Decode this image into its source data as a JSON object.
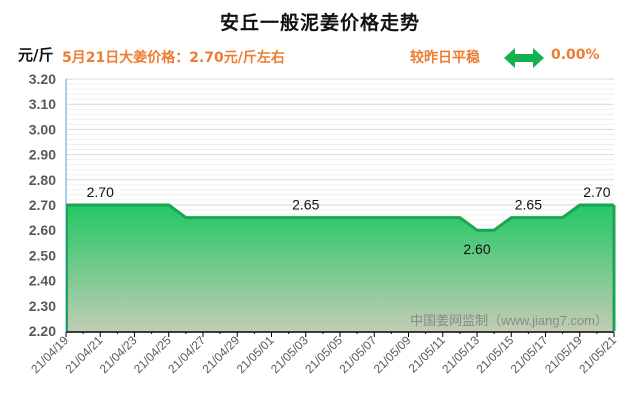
{
  "header": {
    "title": "安丘一般泥姜价格走势",
    "unit": "元/斤",
    "price_note": "5月21日大姜价格：2.70元/斤左右",
    "change_label": "较昨日平稳",
    "change_icon": "double-arrow-icon",
    "change_value": "0.00%"
  },
  "watermark": "中国姜网监制（www.jiang7.com）",
  "colors": {
    "line": "#1aa655",
    "fill_top": "#22c864",
    "fill_bottom": "#c2ccb4",
    "accent_text": "#ed7d31",
    "axis_line": "#5b9bd5"
  },
  "chart_data": {
    "type": "area",
    "title": "安丘一般泥姜价格走势",
    "xlabel": "",
    "ylabel": "元/斤",
    "ylim": [
      2.2,
      3.2
    ],
    "yticks": [
      "3.20",
      "3.10",
      "3.00",
      "2.90",
      "2.80",
      "2.70",
      "2.60",
      "2.50",
      "2.40",
      "2.30",
      "2.20"
    ],
    "x": [
      "21/04/19",
      "21/04/20",
      "21/04/21",
      "21/04/22",
      "21/04/23",
      "21/04/24",
      "21/04/25",
      "21/04/26",
      "21/04/27",
      "21/04/28",
      "21/04/29",
      "21/04/30",
      "21/05/01",
      "21/05/02",
      "21/05/03",
      "21/05/04",
      "21/05/05",
      "21/05/06",
      "21/05/07",
      "21/05/08",
      "21/05/09",
      "21/05/10",
      "21/05/11",
      "21/05/12",
      "21/05/13",
      "21/05/14",
      "21/05/15",
      "21/05/16",
      "21/05/17",
      "21/05/18",
      "21/05/19",
      "21/05/20",
      "21/05/21"
    ],
    "xtick_labels": [
      "21/04/19",
      "21/04/21",
      "21/04/23",
      "21/04/25",
      "21/04/27",
      "21/04/29",
      "21/05/01",
      "21/05/03",
      "21/05/05",
      "21/05/07",
      "21/05/09",
      "21/05/11",
      "21/05/13",
      "21/05/15",
      "21/05/17",
      "21/05/19",
      "21/05/21"
    ],
    "series": [
      {
        "name": "安丘一般泥姜价格",
        "values": [
          2.7,
          2.7,
          2.7,
          2.7,
          2.7,
          2.7,
          2.7,
          2.65,
          2.65,
          2.65,
          2.65,
          2.65,
          2.65,
          2.65,
          2.65,
          2.65,
          2.65,
          2.65,
          2.65,
          2.65,
          2.65,
          2.65,
          2.65,
          2.65,
          2.6,
          2.6,
          2.65,
          2.65,
          2.65,
          2.65,
          2.7,
          2.7,
          2.7
        ]
      }
    ],
    "annotations": [
      {
        "text": "2.70",
        "x_index": 2,
        "value": 2.7,
        "position": "above"
      },
      {
        "text": "2.65",
        "x_index": 14,
        "value": 2.65,
        "position": "above"
      },
      {
        "text": "2.60",
        "x_index": 24,
        "value": 2.6,
        "position": "below"
      },
      {
        "text": "2.65",
        "x_index": 27,
        "value": 2.65,
        "position": "above"
      },
      {
        "text": "2.70",
        "x_index": 31,
        "value": 2.7,
        "position": "above"
      }
    ],
    "grid": true,
    "legend": "none"
  }
}
